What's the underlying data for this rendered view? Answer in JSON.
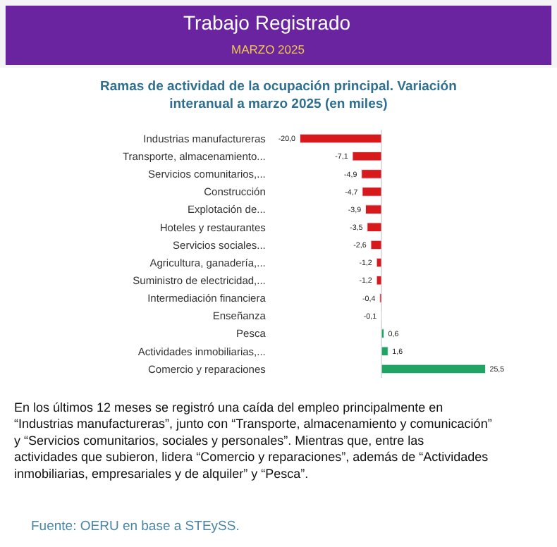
{
  "chart_data": {
    "type": "bar",
    "orientation": "horizontal",
    "title": "Trabajo Registrado",
    "subtitle": "MARZO 2025",
    "annotations": [
      "Ramas de actividad de la ocupación principal. Variación interanual a marzo 2025 (en miles)",
      "En los últimos 12 meses se registró una caída del empleo principalmente en “Industrias manufactureras”, junto con “Transporte, almacenamiento y comunicación” y “Servicios comunitarios, sociales y personales”. Mientras que, entre las actividades que subieron, lidera “Comercio y reparaciones”, además de “Actividades inmobiliarias, empresariales y de alquiler” y “Pesca”.",
      "Fuente: OERU en base a STEySS."
    ],
    "categories": [
      "Industrias manufactureras",
      "Transporte, almacenamiento...",
      "Servicios comunitarios,...",
      "Construcción",
      "Explotación de...",
      "Hoteles y restaurantes",
      "Servicios sociales...",
      "Agricultura, ganadería,...",
      "Suministro de electricidad,...",
      "Intermediación financiera",
      "Enseñanza",
      "Pesca",
      "Actividades inmobiliarias,...",
      "Comercio y reparaciones"
    ],
    "values": [
      -20.0,
      -7.1,
      -4.9,
      -4.7,
      -3.9,
      -3.5,
      -2.6,
      -1.2,
      -1.2,
      -0.4,
      -0.1,
      0.6,
      1.6,
      25.5
    ],
    "colors": [
      "#d7191c",
      "#d7191c",
      "#d7191c",
      "#d7191c",
      "#d7191c",
      "#d7191c",
      "#d7191c",
      "#d7191c",
      "#d7191c",
      "#d7191c",
      "#d7191c",
      "#1fa463",
      "#1fa463",
      "#1fa463"
    ],
    "value_labels": [
      "-20,0",
      "-7,1",
      "-4,9",
      "-4,7",
      "-3,9",
      "-3,5",
      "-2,6",
      "-1,2",
      "-1,2",
      "-0,4",
      "-0,1",
      "0,6",
      "1,6",
      "25,5"
    ],
    "legend": false
  }
}
